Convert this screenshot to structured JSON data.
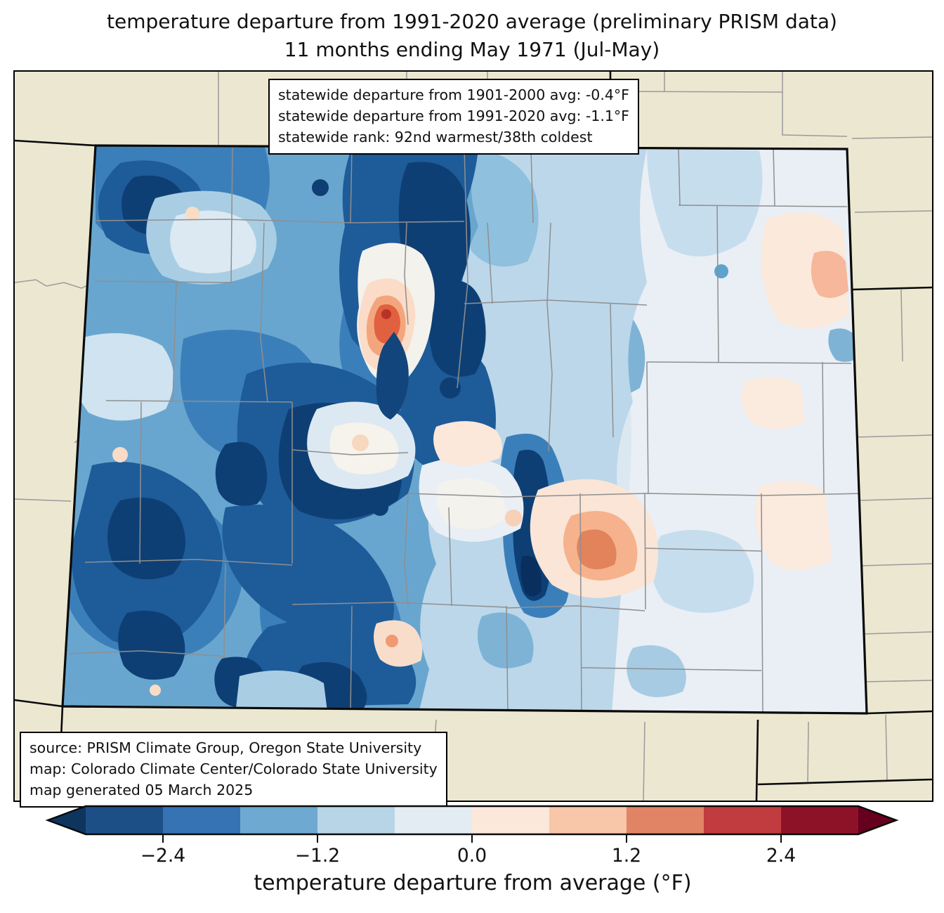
{
  "title": {
    "line1": "temperature departure from 1991-2020 average (preliminary PRISM data)",
    "line2": "11 months ending May 1971 (Jul-May)"
  },
  "stats_box": {
    "lines": [
      "statewide departure from 1901-2000 avg: -0.4°F",
      "statewide departure from 1991-2020 avg: -1.1°F",
      "statewide rank: 92nd warmest/38th coldest"
    ]
  },
  "source_box": {
    "lines": [
      "source: PRISM Climate Group, Oregon State University",
      "map: Colorado Climate Center/Colorado State University",
      "map generated 05 March 2025"
    ]
  },
  "map": {
    "region": "Colorado",
    "type": "filled-contour temperature anomaly map with county boundaries",
    "background_color": "#ebe7d1",
    "state_border_color": "#0a0a0a",
    "county_line_color": "#8f8f8f"
  },
  "colorbar": {
    "label": "temperature departure from average (°F)",
    "ticks": [
      "−2.4",
      "−1.2",
      "0.0",
      "1.2",
      "2.4"
    ],
    "tick_values": [
      -2.4,
      -1.2,
      0.0,
      1.2,
      2.4
    ],
    "range": [
      -3.0,
      3.0
    ],
    "units": "°F",
    "colors": [
      "#1d4f87",
      "#3573b5",
      "#6da9d0",
      "#b7d5e7",
      "#e4ecf3",
      "#fbe8db",
      "#f8c6a8",
      "#e08465",
      "#c13c3e",
      "#8e1227"
    ],
    "arrow_left_color": "#0d355e",
    "arrow_right_color": "#67001f"
  }
}
